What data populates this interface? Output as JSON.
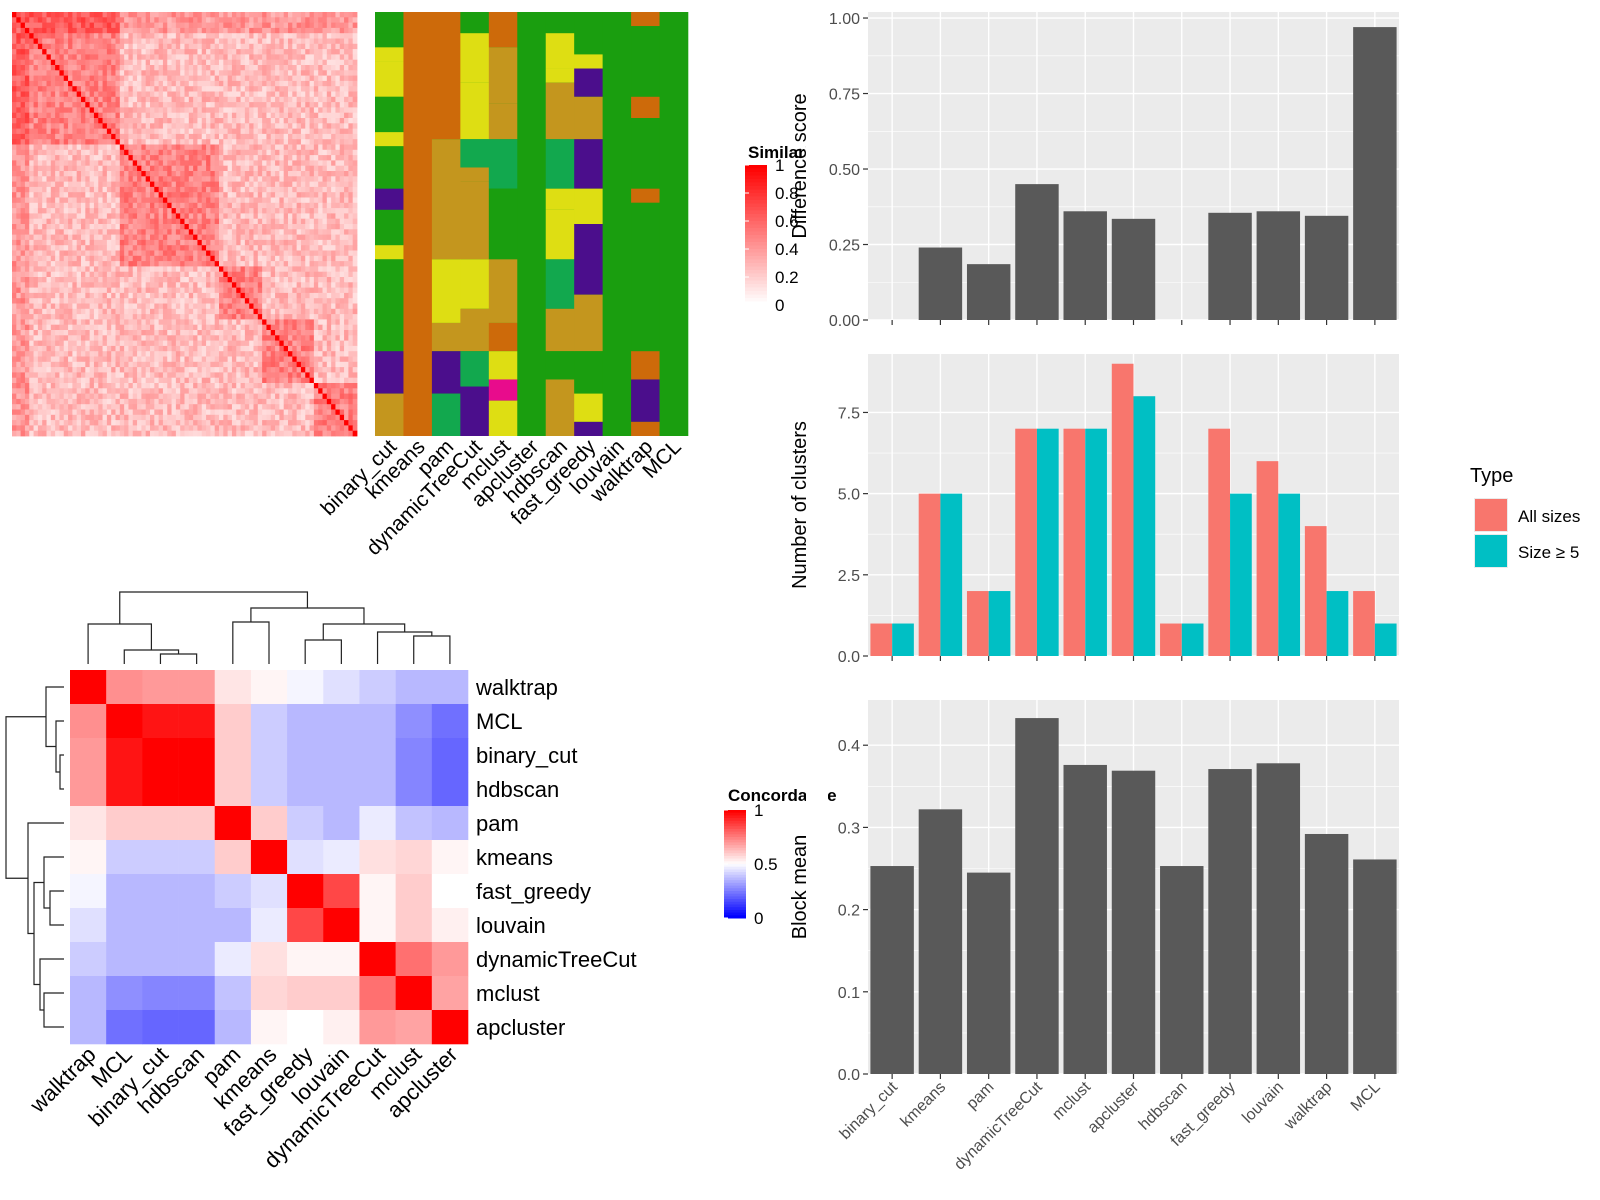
{
  "methods_bar": [
    "binary_cut",
    "kmeans",
    "pam",
    "dynamicTreeCut",
    "mclust",
    "apcluster",
    "hdbscan",
    "fast_greedy",
    "louvain",
    "walktrap",
    "MCL"
  ],
  "colors": {
    "panel_bg": "#ebebeb",
    "gridline": "#ffffff",
    "bar_gray": "#595959",
    "all_sizes": "#f8766d",
    "size_ge5": "#00bfc4",
    "sim_high": "#ff0000",
    "conc_low": "#0000ff",
    "conc_mid": "#ffffff",
    "conc_high": "#ff0000",
    "cluster_palette": [
      "#1a9e0f",
      "#dede13",
      "#cd6a0a",
      "#c4961e",
      "#4b0e8c",
      "#12a84e",
      "#e80c8c"
    ]
  },
  "similarity_heatmap": {
    "legend_title": "Similarity",
    "legend_ticks": [
      "1",
      "0.8",
      "0.6",
      "0.4",
      "0.2",
      "0"
    ]
  },
  "cluster_annotation": {
    "columns": [
      "binary_cut",
      "kmeans",
      "pam",
      "dynamicTreeCut",
      "mclust",
      "apcluster",
      "hdbscan",
      "fast_greedy",
      "louvain",
      "walktrap",
      "MCL"
    ]
  },
  "concordance_heatmap": {
    "legend_title": "Concordance",
    "legend_ticks": [
      "1",
      "0.5",
      "0"
    ],
    "rows": [
      "walktrap",
      "MCL",
      "binary_cut",
      "hdbscan",
      "pam",
      "kmeans",
      "fast_greedy",
      "louvain",
      "dynamicTreeCut",
      "mclust",
      "apcluster"
    ]
  },
  "chart_data": [
    {
      "type": "bar",
      "title": "",
      "xlabel": "",
      "ylabel": "Difference score",
      "categories": [
        "binary_cut",
        "kmeans",
        "pam",
        "dynamicTreeCut",
        "mclust",
        "apcluster",
        "hdbscan",
        "fast_greedy",
        "louvain",
        "walktrap",
        "MCL"
      ],
      "values": [
        0,
        0.24,
        0.185,
        0.45,
        0.36,
        0.335,
        0,
        0.355,
        0.36,
        0.345,
        0.97
      ],
      "ylim": [
        0,
        1.02
      ],
      "yticks": [
        "0.00",
        "0.25",
        "0.50",
        "0.75",
        "1.00"
      ],
      "grid": true
    },
    {
      "type": "bar",
      "title": "",
      "xlabel": "",
      "ylabel": "Number of clusters",
      "categories": [
        "binary_cut",
        "kmeans",
        "pam",
        "dynamicTreeCut",
        "mclust",
        "apcluster",
        "hdbscan",
        "fast_greedy",
        "louvain",
        "walktrap",
        "MCL"
      ],
      "legend_title": "Type",
      "legend_placement": "right",
      "series": [
        {
          "name": "All sizes",
          "values": [
            1,
            5,
            2,
            7,
            7,
            9,
            1,
            7,
            6,
            4,
            2
          ]
        },
        {
          "name": "Size ≥ 5",
          "values": [
            1,
            5,
            2,
            7,
            7,
            8,
            1,
            5,
            5,
            2,
            1
          ]
        }
      ],
      "ylim": [
        0,
        9.3
      ],
      "yticks": [
        "0.0",
        "2.5",
        "5.0",
        "7.5"
      ],
      "grid": true
    },
    {
      "type": "bar",
      "title": "",
      "xlabel": "",
      "ylabel": "Block mean",
      "categories": [
        "binary_cut",
        "kmeans",
        "pam",
        "dynamicTreeCut",
        "mclust",
        "apcluster",
        "hdbscan",
        "fast_greedy",
        "louvain",
        "walktrap",
        "MCL"
      ],
      "values": [
        0.253,
        0.322,
        0.245,
        0.433,
        0.376,
        0.369,
        0.253,
        0.371,
        0.378,
        0.292,
        0.261
      ],
      "ylim": [
        0,
        0.455
      ],
      "yticks": [
        "0.0",
        "0.1",
        "0.2",
        "0.3",
        "0.4"
      ],
      "grid": true
    }
  ]
}
